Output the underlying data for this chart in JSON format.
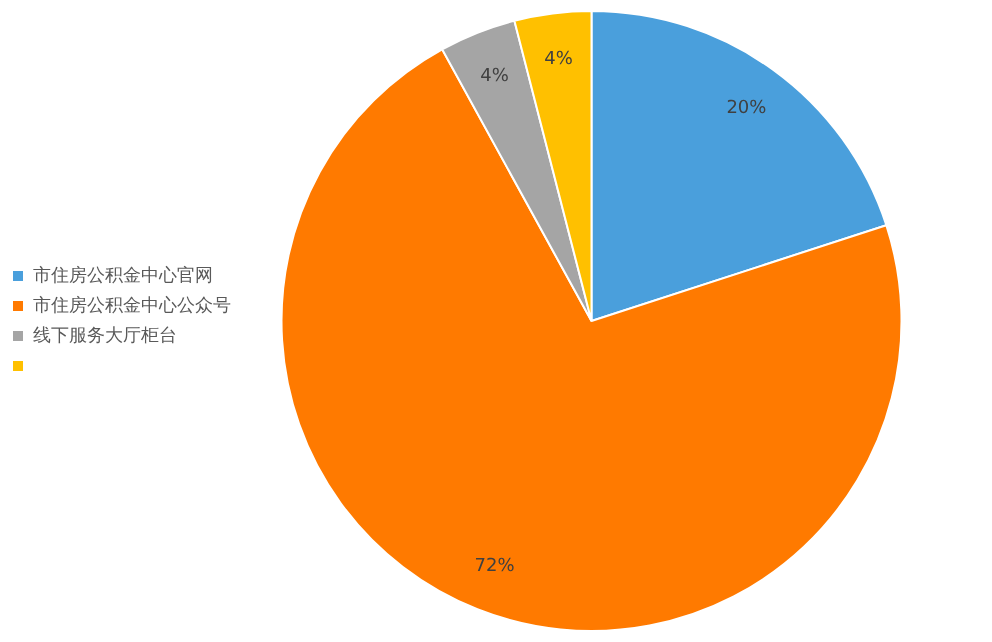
{
  "chart_data": {
    "type": "pie",
    "categories": [
      "市住房公积金中心官网",
      "市住房公积金中心公众号",
      "线下服务大厅柜台",
      null
    ],
    "values": [
      20,
      72,
      4,
      4
    ],
    "colors": [
      "#4a9fdc",
      "#ff7a00",
      "#a5a5a5",
      "#ffc000"
    ],
    "value_labels": [
      "20%",
      "72%",
      "4%",
      "4%"
    ],
    "legend": "left"
  }
}
